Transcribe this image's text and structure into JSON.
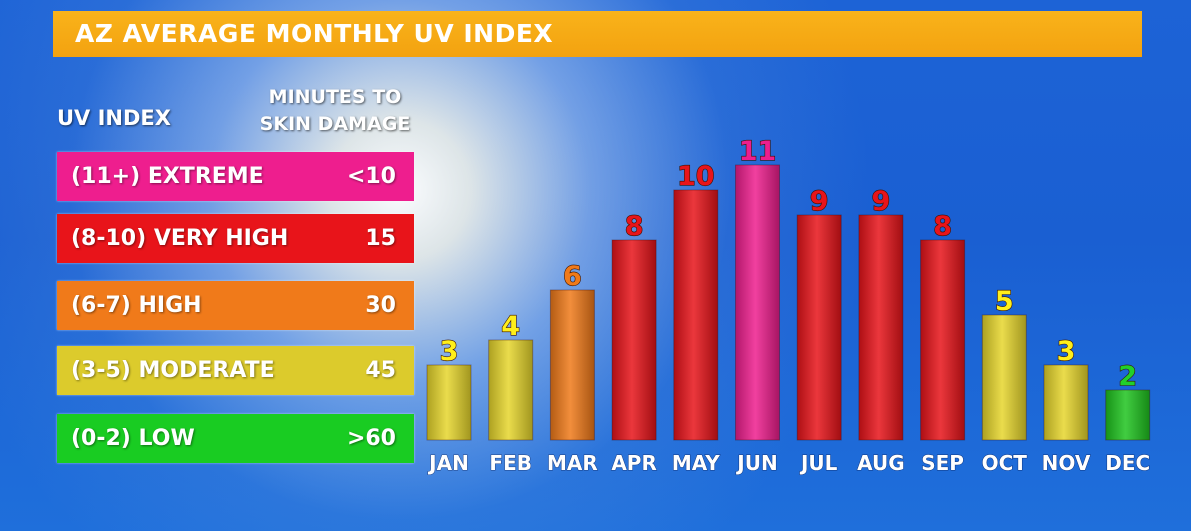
{
  "title": "AZ AVERAGE MONTHLY UV INDEX",
  "legend": {
    "uv_header": "UV INDEX",
    "minutes_header_line1": "MINUTES TO",
    "minutes_header_line2": "SKIN DAMAGE",
    "rows": [
      {
        "label": "(11+) EXTREME",
        "minutes": "<10",
        "color": "#ee1e8e"
      },
      {
        "label": "(8-10) VERY HIGH",
        "minutes": "15",
        "color": "#e8141a"
      },
      {
        "label": "(6-7) HIGH",
        "minutes": "30",
        "color": "#f07a1a"
      },
      {
        "label": "(3-5) MODERATE",
        "minutes": "45",
        "color": "#dccb2c"
      },
      {
        "label": "(0-2) LOW",
        "minutes": ">60",
        "color": "#19cc22"
      }
    ]
  },
  "chart_data": {
    "type": "bar",
    "title": "AZ AVERAGE MONTHLY UV INDEX",
    "categories": [
      "JAN",
      "FEB",
      "MAR",
      "APR",
      "MAY",
      "JUN",
      "JUL",
      "AUG",
      "SEP",
      "OCT",
      "NOV",
      "DEC"
    ],
    "values": [
      3,
      4,
      6,
      8,
      10,
      11,
      9,
      9,
      8,
      5,
      3,
      2
    ],
    "value_labels": [
      "3",
      "4",
      "6",
      "8",
      "10",
      "11",
      "9",
      "9",
      "8",
      "5",
      "3",
      "2"
    ],
    "category_colors": {
      "extreme": "#ee1e8e",
      "very_high": "#e8141a",
      "high": "#f07a1a",
      "moderate": "#e6d62c",
      "low": "#1fc41f"
    },
    "label_colors": {
      "extreme": "#ee1e8e",
      "very_high": "#e8141a",
      "high": "#f07a1a",
      "moderate": "#ffef1a",
      "low": "#21d12a"
    },
    "ylim": [
      0,
      11
    ],
    "grid": false,
    "legend": "left"
  }
}
